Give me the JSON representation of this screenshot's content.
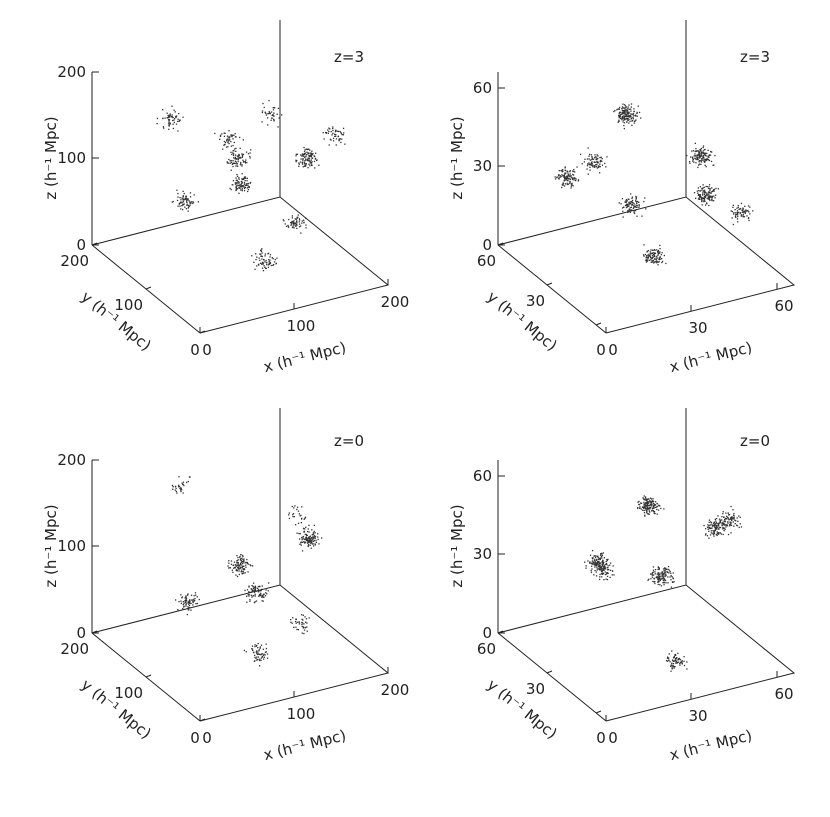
{
  "chart_data": [
    {
      "type": "scatter",
      "panel": "top-left",
      "redshift_label": "z=3",
      "xlabel": "x (h⁻¹ Mpc)",
      "ylabel": "y (h⁻¹ Mpc)",
      "zlabel": "z (h⁻¹ Mpc)",
      "xlim": [
        0,
        200
      ],
      "ylim": [
        0,
        200
      ],
      "zlim": [
        0,
        200
      ],
      "x_ticks": [
        "0",
        "100",
        "200"
      ],
      "y_ticks": [
        "0",
        "100",
        "200"
      ],
      "z_ticks": [
        "0",
        "100",
        "200"
      ],
      "clusters": [
        {
          "x": 60,
          "y": 160,
          "z": 150,
          "n": 60
        },
        {
          "x": 110,
          "y": 120,
          "z": 110,
          "n": 80
        },
        {
          "x": 150,
          "y": 60,
          "z": 130,
          "n": 110
        },
        {
          "x": 40,
          "y": 100,
          "z": 90,
          "n": 70
        },
        {
          "x": 130,
          "y": 150,
          "z": 60,
          "n": 90
        },
        {
          "x": 90,
          "y": 40,
          "z": 40,
          "n": 70
        },
        {
          "x": 170,
          "y": 120,
          "z": 20,
          "n": 60
        },
        {
          "x": 160,
          "y": 30,
          "z": 170,
          "n": 50
        },
        {
          "x": 70,
          "y": 70,
          "z": 170,
          "n": 50
        },
        {
          "x": 120,
          "y": 80,
          "z": 180,
          "n": 40
        }
      ]
    },
    {
      "type": "scatter",
      "panel": "top-right",
      "redshift_label": "z=3",
      "xlabel": "x (h⁻¹ Mpc)",
      "ylabel": "y (h⁻¹ Mpc)",
      "zlabel": "z (h⁻¹ Mpc)",
      "xlim": [
        0,
        66
      ],
      "ylim": [
        0,
        66
      ],
      "zlim": [
        0,
        66
      ],
      "x_ticks": [
        "0",
        "30",
        "60"
      ],
      "y_ticks": [
        "0",
        "30",
        "60"
      ],
      "z_ticks": [
        "0",
        "30",
        "60"
      ],
      "clusters": [
        {
          "x": 30,
          "y": 40,
          "z": 55,
          "n": 150
        },
        {
          "x": 45,
          "y": 20,
          "z": 45,
          "n": 130
        },
        {
          "x": 15,
          "y": 50,
          "z": 30,
          "n": 110
        },
        {
          "x": 55,
          "y": 35,
          "z": 20,
          "n": 120
        },
        {
          "x": 25,
          "y": 15,
          "z": 15,
          "n": 100
        },
        {
          "x": 40,
          "y": 55,
          "z": 10,
          "n": 90
        },
        {
          "x": 10,
          "y": 25,
          "z": 50,
          "n": 80
        },
        {
          "x": 50,
          "y": 5,
          "z": 30,
          "n": 70
        }
      ]
    },
    {
      "type": "scatter",
      "panel": "bottom-left",
      "redshift_label": "z=0",
      "xlabel": "x (h⁻¹ Mpc)",
      "ylabel": "y (h⁻¹ Mpc)",
      "zlabel": "z (h⁻¹ Mpc)",
      "xlim": [
        0,
        200
      ],
      "ylim": [
        0,
        200
      ],
      "zlim": [
        0,
        200
      ],
      "x_ticks": [
        "0",
        "100",
        "200"
      ],
      "y_ticks": [
        "0",
        "100",
        "200"
      ],
      "z_ticks": [
        "0",
        "100",
        "200"
      ],
      "clusters": [
        {
          "x": 150,
          "y": 60,
          "z": 140,
          "n": 120
        },
        {
          "x": 110,
          "y": 120,
          "z": 90,
          "n": 110
        },
        {
          "x": 50,
          "y": 110,
          "z": 70,
          "n": 70
        },
        {
          "x": 140,
          "y": 140,
          "z": 40,
          "n": 80
        },
        {
          "x": 90,
          "y": 50,
          "z": 30,
          "n": 60
        },
        {
          "x": 70,
          "y": 160,
          "z": 170,
          "n": 30
        },
        {
          "x": 170,
          "y": 110,
          "z": 10,
          "n": 40
        },
        {
          "x": 120,
          "y": 30,
          "z": 190,
          "n": 25
        }
      ]
    },
    {
      "type": "scatter",
      "panel": "bottom-right",
      "redshift_label": "z=0",
      "xlabel": "x (h⁻¹ Mpc)",
      "ylabel": "y (h⁻¹ Mpc)",
      "zlabel": "z (h⁻¹ Mpc)",
      "xlim": [
        0,
        66
      ],
      "ylim": [
        0,
        66
      ],
      "zlim": [
        0,
        66
      ],
      "x_ticks": [
        "0",
        "30",
        "60"
      ],
      "y_ticks": [
        "0",
        "30",
        "60"
      ],
      "z_ticks": [
        "0",
        "30",
        "60"
      ],
      "clusters": [
        {
          "x": 35,
          "y": 35,
          "z": 55,
          "n": 150
        },
        {
          "x": 50,
          "y": 20,
          "z": 50,
          "n": 110
        },
        {
          "x": 20,
          "y": 40,
          "z": 35,
          "n": 120
        },
        {
          "x": 45,
          "y": 45,
          "z": 20,
          "n": 130
        },
        {
          "x": 10,
          "y": 20,
          "z": 45,
          "n": 70
        },
        {
          "x": 60,
          "y": 30,
          "z": 45,
          "n": 80
        },
        {
          "x": 30,
          "y": 10,
          "z": 10,
          "n": 70
        }
      ]
    }
  ]
}
